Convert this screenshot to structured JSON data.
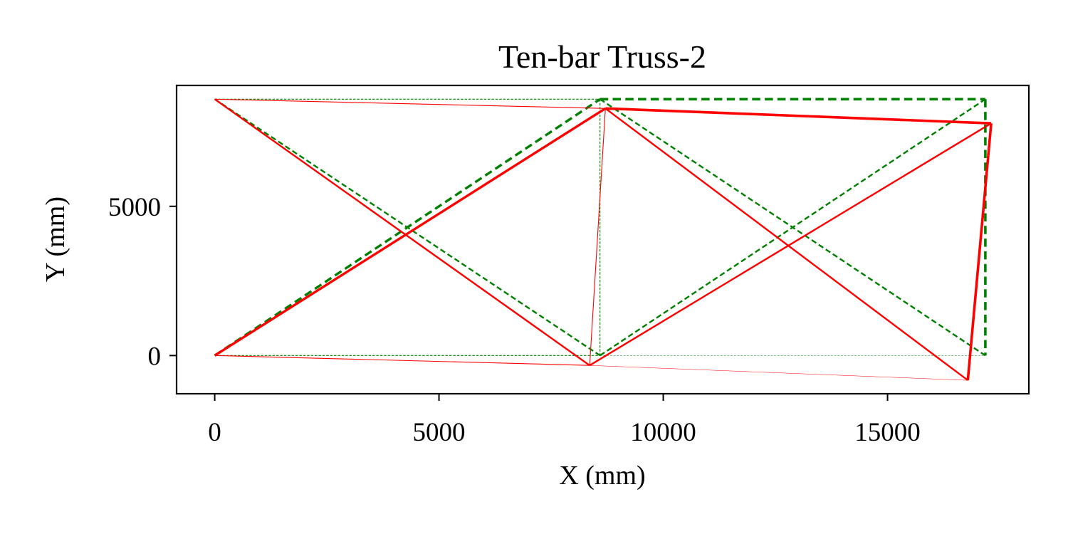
{
  "chart_data": {
    "type": "line",
    "title": "Ten-bar Truss-2",
    "xlabel": "X (mm)",
    "ylabel": "Y (mm)",
    "xlim": [
      -850,
      18150
    ],
    "ylim": [
      -1280,
      9050
    ],
    "xticks": [
      0,
      5000,
      10000,
      15000
    ],
    "xtick_labels": [
      "0",
      "5000",
      "10000",
      "15000"
    ],
    "yticks": [
      0,
      5000
    ],
    "ytick_labels": [
      "0",
      "5000"
    ],
    "grid": false,
    "legend": null,
    "series": [
      {
        "style": "dashed",
        "color": "#008000",
        "nodes": [
          [
            0,
            0
          ],
          [
            8590,
            0
          ],
          [
            17180,
            0
          ],
          [
            0,
            8590
          ],
          [
            8590,
            8590
          ],
          [
            17180,
            8590
          ]
        ],
        "members": [
          {
            "from": 3,
            "to": 4,
            "weight": 1.1
          },
          {
            "from": 4,
            "to": 5,
            "weight": 3.6
          },
          {
            "from": 0,
            "to": 1,
            "weight": 1.1
          },
          {
            "from": 1,
            "to": 2,
            "weight": 0.5
          },
          {
            "from": 4,
            "to": 1,
            "weight": 1.1
          },
          {
            "from": 5,
            "to": 2,
            "weight": 3.6
          },
          {
            "from": 3,
            "to": 1,
            "weight": 2.4
          },
          {
            "from": 0,
            "to": 4,
            "weight": 3.4
          },
          {
            "from": 4,
            "to": 2,
            "weight": 2.4
          },
          {
            "from": 1,
            "to": 5,
            "weight": 2.4
          }
        ]
      },
      {
        "style": "solid",
        "color": "#ff0000",
        "nodes": [
          [
            0,
            0
          ],
          [
            8360,
            -330
          ],
          [
            16790,
            -830
          ],
          [
            0,
            8590
          ],
          [
            8710,
            8280
          ],
          [
            17310,
            7780
          ]
        ],
        "members": [
          {
            "from": 3,
            "to": 4,
            "weight": 1.1
          },
          {
            "from": 4,
            "to": 5,
            "weight": 3.6
          },
          {
            "from": 0,
            "to": 1,
            "weight": 1.1
          },
          {
            "from": 1,
            "to": 2,
            "weight": 0.5
          },
          {
            "from": 4,
            "to": 1,
            "weight": 1.1
          },
          {
            "from": 5,
            "to": 2,
            "weight": 3.6
          },
          {
            "from": 3,
            "to": 1,
            "weight": 2.4
          },
          {
            "from": 0,
            "to": 4,
            "weight": 3.4
          },
          {
            "from": 4,
            "to": 2,
            "weight": 2.4
          },
          {
            "from": 1,
            "to": 5,
            "weight": 2.4
          }
        ]
      }
    ]
  }
}
